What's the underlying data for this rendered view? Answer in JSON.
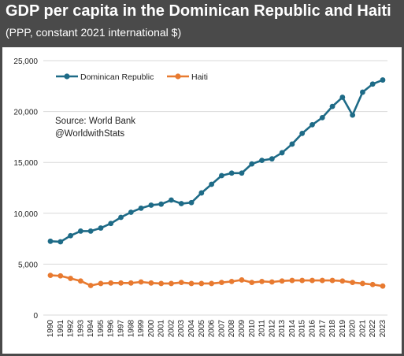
{
  "header": {
    "title": "GDP per capita in the Dominican Republic and Haiti",
    "subtitle": "(PPP, constant 2021 international $)"
  },
  "annotation": {
    "source": "Source: World Bank",
    "handle": "@WorldwithStats"
  },
  "colors": {
    "dominican_republic": "#1e6b87",
    "haiti": "#e87a30",
    "gridline": "#d9d9d9"
  },
  "chart_data": {
    "type": "line",
    "title": "GDP per capita in the Dominican Republic and Haiti",
    "subtitle": "(PPP, constant 2021 international $)",
    "xlabel": "",
    "ylabel": "",
    "ylim": [
      0,
      25000
    ],
    "yticks": [
      "0",
      "5,000",
      "10,000",
      "15,000",
      "20,000",
      "25,000"
    ],
    "ytick_values": [
      0,
      5000,
      10000,
      15000,
      20000,
      25000
    ],
    "grid": "horizontal",
    "legend_position": "top-left",
    "x": [
      "1990",
      "1991",
      "1992",
      "1993",
      "1994",
      "1995",
      "1996",
      "1997",
      "1998",
      "1999",
      "2000",
      "2001",
      "2002",
      "2003",
      "2004",
      "2005",
      "2006",
      "2007",
      "2008",
      "2009",
      "2010",
      "2011",
      "2012",
      "2013",
      "2014",
      "2015",
      "2016",
      "2017",
      "2018",
      "2019",
      "2020",
      "2021",
      "2022",
      "2023"
    ],
    "series": [
      {
        "name": "Dominican Republic",
        "color": "#1e6b87",
        "values": [
          7250,
          7200,
          7800,
          8250,
          8250,
          8550,
          9000,
          9600,
          10100,
          10500,
          10800,
          10900,
          11300,
          10950,
          11050,
          12000,
          12850,
          13700,
          13950,
          13950,
          14850,
          15200,
          15350,
          15950,
          16800,
          17850,
          18700,
          19400,
          20500,
          21400,
          19650,
          21900,
          22700,
          23100
        ]
      },
      {
        "name": "Haiti",
        "color": "#e87a30",
        "values": [
          3900,
          3850,
          3600,
          3350,
          2900,
          3100,
          3150,
          3150,
          3150,
          3250,
          3150,
          3100,
          3100,
          3200,
          3100,
          3100,
          3100,
          3200,
          3300,
          3450,
          3200,
          3300,
          3250,
          3350,
          3400,
          3400,
          3400,
          3400,
          3400,
          3350,
          3200,
          3100,
          3000,
          2850
        ]
      }
    ]
  }
}
